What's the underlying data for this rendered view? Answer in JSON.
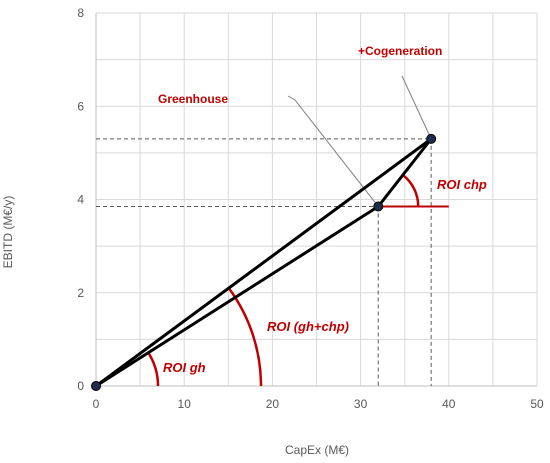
{
  "chart_data": {
    "type": "scatter",
    "xlabel": "CapEx (M€)",
    "ylabel": "EBITD (M€/y)",
    "xlim": [
      0,
      50
    ],
    "ylim": [
      0,
      8
    ],
    "xticks": [
      "0",
      "10",
      "20",
      "30",
      "40",
      "50"
    ],
    "yticks": [
      "0",
      "2",
      "4",
      "6",
      "8"
    ],
    "grid": true,
    "points": [
      {
        "label": "",
        "x": 0,
        "y": 0
      },
      {
        "label": "Greenhouse",
        "x": 32,
        "y": 3.85
      },
      {
        "label": "+Cogeneration",
        "x": 38,
        "y": 5.3
      }
    ],
    "annotations": {
      "roi_gh": "ROI gh",
      "roi_gh_chp": "ROI (gh+chp)",
      "roi_chp": "ROI chp"
    },
    "colors": {
      "line": "#000000",
      "point": "#1f2d4d",
      "annotation": "#c00000",
      "grid": "#d9d9d9",
      "dashed": "#595959"
    }
  }
}
